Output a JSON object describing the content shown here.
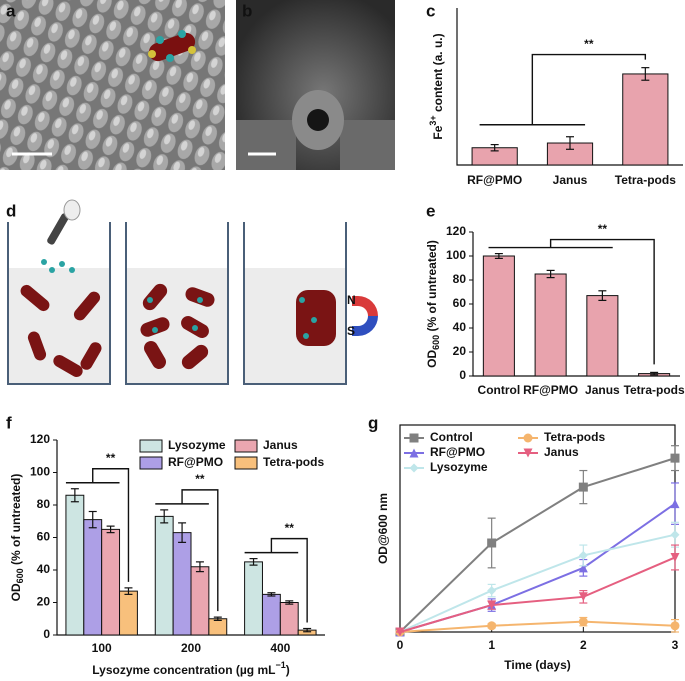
{
  "panel_labels": [
    "a",
    "b",
    "c",
    "d",
    "e",
    "f",
    "g"
  ],
  "diagram_d": {
    "magnet_labels": [
      "N",
      "S"
    ]
  },
  "chart_data": [
    {
      "type": "bar",
      "ylabel": [
        {
          "text": "Fe"
        },
        {
          "sup": "3+"
        },
        {
          "text": " content (a. u.)"
        }
      ],
      "categories": [
        "RF@PMO",
        "Janus",
        "Tetra-pods"
      ],
      "values": [
        11,
        14,
        58
      ],
      "errors": [
        2,
        4,
        4
      ],
      "color": "#e8a3ad",
      "ylim": [
        0,
        100
      ],
      "annotations": [
        "**"
      ]
    },
    {
      "type": "bar",
      "ylabel": [
        {
          "text": "OD"
        },
        {
          "sub": "600"
        },
        {
          "text": " (% of untreated)"
        }
      ],
      "categories": [
        "Control",
        "RF@PMO",
        "Janus",
        "Tetra-pods"
      ],
      "values": [
        100,
        85,
        67,
        2
      ],
      "errors": [
        2,
        3,
        4,
        1
      ],
      "color": "#e8a3ad",
      "ylim": [
        0,
        120
      ],
      "yticks": [
        0,
        20,
        40,
        60,
        80,
        100,
        120
      ],
      "annotations": [
        "**"
      ]
    },
    {
      "type": "grouped_bar",
      "ylabel": [
        {
          "text": "OD"
        },
        {
          "sub": "600"
        },
        {
          "text": " (% of untreated)"
        }
      ],
      "xlabel": [
        {
          "text": "Lysozyme concentration (µg mL"
        },
        {
          "sup": "−1"
        },
        {
          "text": ")"
        }
      ],
      "categories": [
        "100",
        "200",
        "400"
      ],
      "ylim": [
        0,
        120
      ],
      "yticks": [
        0,
        20,
        40,
        60,
        80,
        100,
        120
      ],
      "series": [
        {
          "name": "Lysozyme",
          "color": "#cde5e2",
          "values": [
            86,
            73,
            45
          ],
          "errors": [
            4,
            4,
            2
          ]
        },
        {
          "name": "RF@PMO",
          "color": "#ad9fe6",
          "values": [
            71,
            63,
            25
          ],
          "errors": [
            5,
            6,
            1
          ]
        },
        {
          "name": "Janus",
          "color": "#eaa6b0",
          "values": [
            65,
            42,
            20
          ],
          "errors": [
            2,
            3,
            1
          ]
        },
        {
          "name": "Tetra-pods",
          "color": "#f8c07c",
          "values": [
            27,
            10,
            3
          ],
          "errors": [
            2,
            1,
            1
          ]
        }
      ],
      "annotations": [
        "**",
        "**",
        "**"
      ]
    },
    {
      "type": "line",
      "ylabel": [
        {
          "text": "OD@600 nm"
        }
      ],
      "xlabel": [
        {
          "text": "Time (days)"
        }
      ],
      "x": [
        0,
        1,
        2,
        3
      ],
      "xlim": [
        0,
        3
      ],
      "xticks": [
        0,
        1,
        2,
        3
      ],
      "ylim": [
        0,
        100
      ],
      "series": [
        {
          "name": "Control",
          "color": "#808080",
          "marker": "square",
          "values": [
            0,
            43,
            70,
            84
          ],
          "errors": [
            0,
            12,
            8,
            6
          ]
        },
        {
          "name": "RF@PMO",
          "color": "#7c6fe3",
          "marker": "triangle",
          "values": [
            0,
            13,
            31,
            62
          ],
          "errors": [
            0,
            3,
            4,
            10
          ]
        },
        {
          "name": "Lysozyme",
          "color": "#bfe6ea",
          "marker": "diamond",
          "values": [
            0,
            20,
            37,
            47
          ],
          "errors": [
            0,
            3,
            5,
            6
          ]
        },
        {
          "name": "Tetra-pods",
          "color": "#f5b56e",
          "marker": "circle",
          "values": [
            0,
            3,
            5,
            3
          ],
          "errors": [
            0,
            1,
            2,
            3
          ]
        },
        {
          "name": "Janus",
          "color": "#e55f80",
          "marker": "down-triangle",
          "values": [
            0,
            13,
            17,
            36
          ],
          "errors": [
            0,
            2,
            3,
            6
          ]
        }
      ]
    }
  ]
}
